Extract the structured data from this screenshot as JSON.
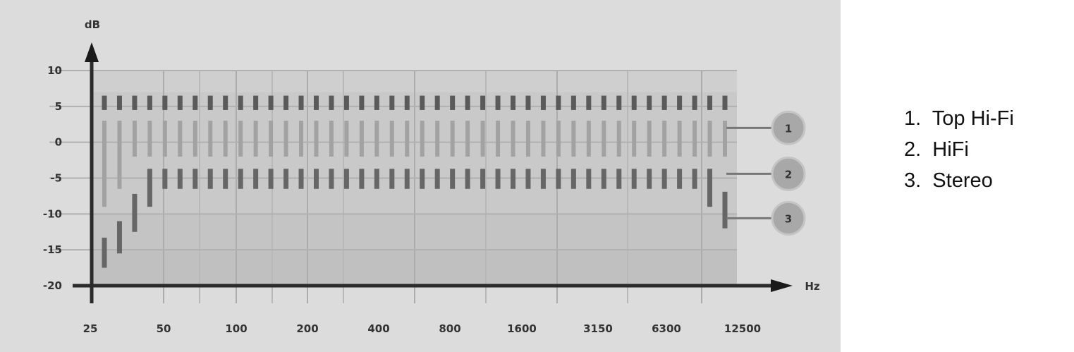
{
  "chart_data": {
    "type": "bar",
    "subtype": "floating range bars (tolerance bands)",
    "ylabel": "dB",
    "xlabel": "Hz",
    "ylim": [
      -20,
      10
    ],
    "yticks": [
      "10",
      "5",
      "0",
      "-5",
      "-10",
      "-15",
      "-20"
    ],
    "xticks": [
      "25",
      "50",
      "100",
      "200",
      "400",
      "800",
      "1600",
      "3150",
      "6300",
      "12500"
    ],
    "x_scale": "log",
    "grid": true,
    "column_count": 42,
    "segments": [
      {
        "low": [
          4.5,
          4.5,
          4.5,
          4.5,
          4.5,
          4.5,
          4.5,
          4.5,
          4.5,
          4.5,
          4.5,
          4.5,
          4.5,
          4.5,
          4.5,
          4.5,
          4.5,
          4.5,
          4.5,
          4.5,
          4.5,
          4.5,
          4.5,
          4.5,
          4.5,
          4.5,
          4.5,
          4.5,
          4.5,
          4.5,
          4.5,
          4.5,
          4.5,
          4.5,
          4.5,
          4.5,
          4.5,
          4.5,
          4.5,
          4.5,
          4.5,
          4.5
        ],
        "high": [
          6.5,
          6.5,
          6.5,
          6.5,
          6.5,
          6.5,
          6.5,
          6.5,
          6.5,
          6.5,
          6.5,
          6.5,
          6.5,
          6.5,
          6.5,
          6.5,
          6.5,
          6.5,
          6.5,
          6.5,
          6.5,
          6.5,
          6.5,
          6.5,
          6.5,
          6.5,
          6.5,
          6.5,
          6.5,
          6.5,
          6.5,
          6.5,
          6.5,
          6.5,
          6.5,
          6.5,
          6.5,
          6.5,
          6.5,
          6.5,
          6.5,
          6.5
        ],
        "color": "#5a5a5a"
      },
      {
        "low": [
          -9,
          -6.5,
          -2,
          -2,
          -2,
          -2,
          -2,
          -2,
          -2,
          -2,
          -2,
          -2,
          -2,
          -2,
          -2,
          -2,
          -2,
          -2,
          -2,
          -2,
          -2,
          -2,
          -2,
          -2,
          -2,
          -2,
          -2,
          -2,
          -2,
          -2,
          -2,
          -2,
          -2,
          -2,
          -2,
          -2,
          -2,
          -2,
          -2,
          -2,
          -2,
          -2
        ],
        "high": [
          3,
          3,
          3,
          3,
          3,
          3,
          3,
          3,
          3,
          3,
          3,
          3,
          3,
          3,
          3,
          3,
          3,
          3,
          3,
          3,
          3,
          3,
          3,
          3,
          3,
          3,
          3,
          3,
          3,
          3,
          3,
          3,
          3,
          3,
          3,
          3,
          3,
          3,
          3,
          3,
          3,
          3
        ],
        "color": "#a2a2a2"
      },
      {
        "low": [
          -17.5,
          -15.5,
          -12.5,
          -9,
          -6.5,
          -6.5,
          -6.5,
          -6.5,
          -6.5,
          -6.5,
          -6.5,
          -6.5,
          -6.5,
          -6.5,
          -6.5,
          -6.5,
          -6.5,
          -6.5,
          -6.5,
          -6.5,
          -6.5,
          -6.5,
          -6.5,
          -6.5,
          -6.5,
          -6.5,
          -6.5,
          -6.5,
          -6.5,
          -6.5,
          -6.5,
          -6.5,
          -6.5,
          -6.5,
          -6.5,
          -6.5,
          -6.5,
          -6.5,
          -6.5,
          -6.5,
          -9,
          -12
        ],
        "high": [
          -13.3,
          -11,
          -7.2,
          -3.7,
          -3.7,
          -3.7,
          -3.7,
          -3.7,
          -3.7,
          -3.7,
          -3.7,
          -3.7,
          -3.7,
          -3.7,
          -3.7,
          -3.7,
          -3.7,
          -3.7,
          -3.7,
          -3.7,
          -3.7,
          -3.7,
          -3.7,
          -3.7,
          -3.7,
          -3.7,
          -3.7,
          -3.7,
          -3.7,
          -3.7,
          -3.7,
          -3.7,
          -3.7,
          -3.7,
          -3.7,
          -3.7,
          -3.7,
          -3.7,
          -3.7,
          -3.7,
          -3.7,
          -6.9
        ],
        "color": "#666666"
      }
    ],
    "callouts": [
      {
        "label": "1",
        "value": 2
      },
      {
        "label": "2",
        "value": -4.4
      },
      {
        "label": "3",
        "value": -10.6
      }
    ]
  },
  "legend": {
    "items": [
      "1.  Top Hi-Fi",
      "2.  HiFi",
      "3.  Stereo"
    ]
  }
}
